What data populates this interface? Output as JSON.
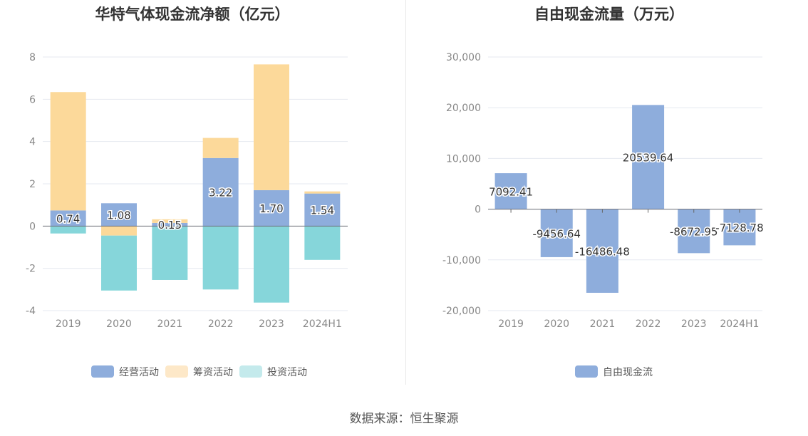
{
  "chart_data": [
    {
      "type": "bar",
      "stacked": true,
      "title": "华特气体现金流净额（亿元）",
      "categories": [
        "2019",
        "2020",
        "2021",
        "2022",
        "2023",
        "2024H1"
      ],
      "series": [
        {
          "name": "经营活动",
          "color": "#8eaddc",
          "values": [
            0.74,
            1.08,
            0.15,
            3.22,
            1.7,
            1.54
          ]
        },
        {
          "name": "筹资活动",
          "color": "#fcd99a",
          "values": [
            5.6,
            -0.45,
            0.17,
            0.95,
            5.95,
            0.1
          ]
        },
        {
          "name": "投资活动",
          "color": "#86d6da",
          "values": [
            -0.35,
            -2.6,
            -2.55,
            -3.0,
            -3.62,
            -1.6
          ]
        }
      ],
      "data_labels": [
        "0.74",
        "1.08",
        "0.15",
        "3.22",
        "1.70",
        "1.54"
      ],
      "y_ticks": [
        "8",
        "6",
        "4",
        "2",
        "0",
        "-2",
        "-4"
      ],
      "ylim": [
        -4,
        8
      ],
      "grid": true,
      "legend_position": "bottom",
      "legend": [
        "经营活动",
        "筹资活动",
        "投资活动"
      ],
      "legend_colors": [
        "#8eaddc",
        "#fde8c8",
        "#c4eaec"
      ]
    },
    {
      "type": "bar",
      "title": "自由现金流量（万元）",
      "categories": [
        "2019",
        "2020",
        "2021",
        "2022",
        "2023",
        "2024H1"
      ],
      "series": [
        {
          "name": "自由现金流",
          "color": "#8eaddc",
          "values": [
            7092.41,
            -9456.64,
            -16486.48,
            20539.64,
            -8672.95,
            -7128.78
          ]
        }
      ],
      "data_labels": [
        "7092.41",
        "-9456.64",
        "-16486.48",
        "20539.64",
        "-8672.95",
        "-7128.78"
      ],
      "y_ticks": [
        "30,000",
        "20,000",
        "10,000",
        "0",
        "-10,000",
        "-20,000"
      ],
      "ylim": [
        -20000,
        30000
      ],
      "grid": true,
      "legend_position": "bottom",
      "legend": [
        "自由现金流"
      ],
      "legend_colors": [
        "#8eaddc"
      ]
    }
  ],
  "footer": "数据来源：恒生聚源"
}
